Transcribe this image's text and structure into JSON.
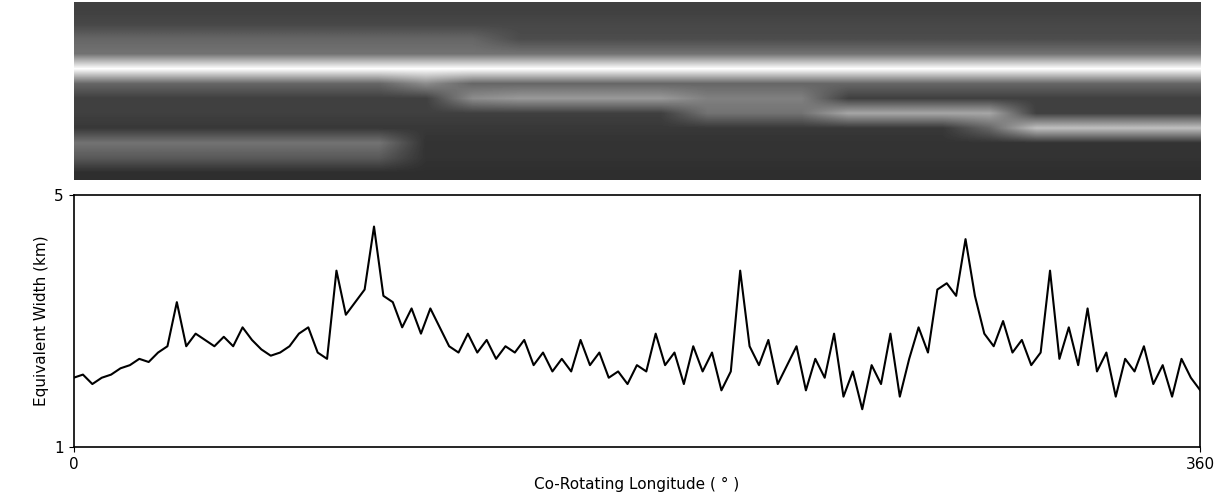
{
  "chart_data": [
    {
      "type": "heatmap",
      "tick_labels": false,
      "xlim": [
        0,
        360
      ],
      "color_range": [
        0,
        1
      ],
      "cells": [
        [
          0.25,
          0.25,
          0.25,
          0.25,
          0.25,
          0.25,
          0.25,
          0.25,
          0.25,
          0.25,
          0.25,
          0.25,
          0.25,
          0.25,
          0.25,
          0.25,
          0.25,
          0.25,
          0.25,
          0.25,
          0.25,
          0.25,
          0.25,
          0.25
        ],
        [
          0.28,
          0.28,
          0.28,
          0.28,
          0.28,
          0.28,
          0.28,
          0.28,
          0.28,
          0.28,
          0.28,
          0.28,
          0.28,
          0.28,
          0.28,
          0.28,
          0.28,
          0.28,
          0.28,
          0.28,
          0.28,
          0.28,
          0.28,
          0.28
        ],
        [
          0.4,
          0.4,
          0.4,
          0.4,
          0.4,
          0.4,
          0.4,
          0.4,
          0.4,
          0.3,
          0.3,
          0.3,
          0.3,
          0.3,
          0.3,
          0.3,
          0.3,
          0.3,
          0.3,
          0.3,
          0.3,
          0.3,
          0.3,
          0.3
        ],
        [
          0.45,
          0.45,
          0.45,
          0.45,
          0.45,
          0.45,
          0.45,
          0.45,
          0.45,
          0.45,
          0.45,
          0.45,
          0.45,
          0.45,
          0.45,
          0.45,
          0.45,
          0.45,
          0.45,
          0.45,
          0.45,
          0.45,
          0.45,
          0.45
        ],
        [
          1.0,
          1.0,
          1.0,
          1.0,
          1.0,
          1.0,
          1.0,
          1.0,
          1.0,
          1.0,
          1.0,
          1.0,
          1.0,
          1.0,
          1.0,
          1.0,
          1.0,
          1.0,
          1.0,
          1.0,
          1.0,
          1.0,
          1.0,
          1.0
        ],
        [
          0.4,
          0.4,
          0.4,
          0.4,
          0.4,
          0.4,
          0.4,
          0.55,
          0.4,
          0.4,
          0.4,
          0.4,
          0.4,
          0.4,
          0.4,
          0.4,
          0.4,
          0.4,
          0.4,
          0.4,
          0.4,
          0.4,
          0.4,
          0.4
        ],
        [
          0.25,
          0.25,
          0.25,
          0.25,
          0.25,
          0.25,
          0.25,
          0.25,
          0.55,
          0.6,
          0.6,
          0.6,
          0.6,
          0.5,
          0.5,
          0.5,
          0.25,
          0.25,
          0.25,
          0.25,
          0.25,
          0.25,
          0.25,
          0.25
        ],
        [
          0.25,
          0.25,
          0.25,
          0.25,
          0.25,
          0.25,
          0.25,
          0.25,
          0.25,
          0.25,
          0.25,
          0.25,
          0.25,
          0.45,
          0.45,
          0.45,
          0.65,
          0.65,
          0.65,
          0.65,
          0.25,
          0.25,
          0.25,
          0.25
        ],
        [
          0.22,
          0.22,
          0.22,
          0.22,
          0.22,
          0.22,
          0.22,
          0.22,
          0.22,
          0.22,
          0.22,
          0.22,
          0.22,
          0.22,
          0.22,
          0.22,
          0.22,
          0.22,
          0.22,
          0.4,
          0.75,
          0.75,
          0.75,
          0.75
        ],
        [
          0.45,
          0.45,
          0.45,
          0.45,
          0.45,
          0.45,
          0.45,
          0.2,
          0.2,
          0.2,
          0.2,
          0.2,
          0.2,
          0.2,
          0.2,
          0.2,
          0.2,
          0.2,
          0.2,
          0.2,
          0.2,
          0.2,
          0.2,
          0.2
        ],
        [
          0.35,
          0.35,
          0.35,
          0.35,
          0.35,
          0.35,
          0.35,
          0.2,
          0.2,
          0.2,
          0.2,
          0.2,
          0.2,
          0.2,
          0.2,
          0.2,
          0.2,
          0.2,
          0.2,
          0.2,
          0.2,
          0.2,
          0.2,
          0.2
        ],
        [
          0.18,
          0.18,
          0.18,
          0.18,
          0.18,
          0.18,
          0.18,
          0.18,
          0.18,
          0.18,
          0.18,
          0.18,
          0.18,
          0.18,
          0.18,
          0.18,
          0.18,
          0.18,
          0.18,
          0.18,
          0.18,
          0.18,
          0.18,
          0.18
        ]
      ]
    },
    {
      "type": "line",
      "x_label": "Co-Rotating Longitude ( ° )",
      "y_label": "Equivalent Width (km)",
      "xlim": [
        0,
        360
      ],
      "xticks": [
        0,
        360
      ],
      "ylim": [
        1,
        5
      ],
      "yticks": [
        1,
        5
      ],
      "color": "#000000",
      "x": [
        0,
        3,
        6,
        9,
        12,
        15,
        18,
        21,
        24,
        27,
        30,
        33,
        36,
        39,
        42,
        45,
        48,
        51,
        54,
        57,
        60,
        63,
        66,
        69,
        72,
        75,
        78,
        81,
        84,
        87,
        90,
        93,
        96,
        99,
        102,
        105,
        108,
        111,
        114,
        117,
        120,
        123,
        126,
        129,
        132,
        135,
        138,
        141,
        144,
        147,
        150,
        153,
        156,
        159,
        162,
        165,
        168,
        171,
        174,
        177,
        180,
        183,
        186,
        189,
        192,
        195,
        198,
        201,
        204,
        207,
        210,
        213,
        216,
        219,
        222,
        225,
        228,
        231,
        234,
        237,
        240,
        243,
        246,
        249,
        252,
        255,
        258,
        261,
        264,
        267,
        270,
        273,
        276,
        279,
        282,
        285,
        288,
        291,
        294,
        297,
        300,
        303,
        306,
        309,
        312,
        315,
        318,
        321,
        324,
        327,
        330,
        333,
        336,
        339,
        342,
        345,
        348,
        351,
        354,
        357,
        360
      ],
      "values": [
        2.1,
        2.15,
        2.0,
        2.1,
        2.15,
        2.25,
        2.3,
        2.4,
        2.35,
        2.5,
        2.6,
        3.3,
        2.6,
        2.8,
        2.7,
        2.6,
        2.75,
        2.6,
        2.9,
        2.7,
        2.55,
        2.45,
        2.5,
        2.6,
        2.8,
        2.9,
        2.5,
        2.4,
        3.8,
        3.1,
        3.3,
        3.5,
        4.5,
        3.4,
        3.3,
        2.9,
        3.2,
        2.8,
        3.2,
        2.9,
        2.6,
        2.5,
        2.8,
        2.5,
        2.7,
        2.4,
        2.6,
        2.5,
        2.7,
        2.3,
        2.5,
        2.2,
        2.4,
        2.2,
        2.7,
        2.3,
        2.5,
        2.1,
        2.2,
        2.0,
        2.3,
        2.2,
        2.8,
        2.3,
        2.5,
        2.0,
        2.6,
        2.2,
        2.5,
        1.9,
        2.2,
        3.8,
        2.6,
        2.3,
        2.7,
        2.0,
        2.3,
        2.6,
        1.9,
        2.4,
        2.1,
        2.8,
        1.8,
        2.2,
        1.6,
        2.3,
        2.0,
        2.8,
        1.8,
        2.4,
        2.9,
        2.5,
        3.5,
        3.6,
        3.4,
        4.3,
        3.4,
        2.8,
        2.6,
        3.0,
        2.5,
        2.7,
        2.3,
        2.5,
        3.8,
        2.4,
        2.9,
        2.3,
        3.2,
        2.2,
        2.5,
        1.8,
        2.4,
        2.2,
        2.6,
        2.0,
        2.3,
        1.8,
        2.4,
        2.1,
        1.9
      ]
    }
  ]
}
